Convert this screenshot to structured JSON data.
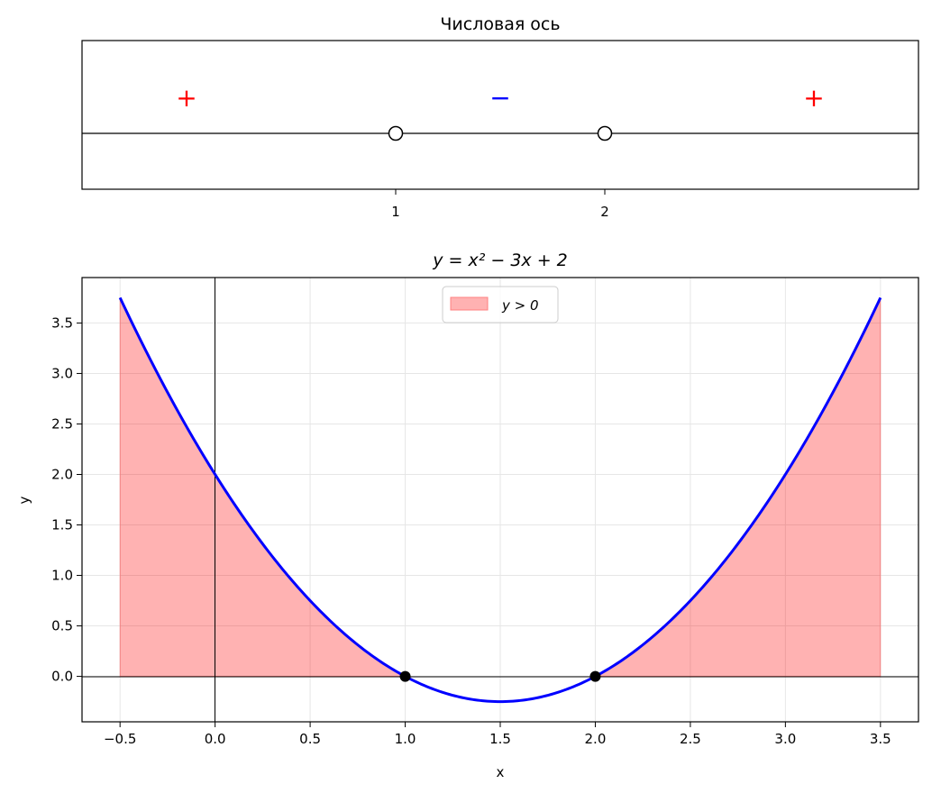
{
  "chart_data": [
    {
      "type": "line",
      "title": "Числовая ось",
      "xlim": [
        -0.5,
        3.5
      ],
      "xticks": [
        1,
        2
      ],
      "tick_labels": [
        "1",
        "2"
      ],
      "open_points": [
        1,
        2
      ],
      "signs": [
        {
          "x": 0.0,
          "label": "+",
          "color": "#ff0000"
        },
        {
          "x": 1.5,
          "label": "−",
          "color": "#0000ff"
        },
        {
          "x": 3.0,
          "label": "+",
          "color": "#ff0000"
        }
      ]
    },
    {
      "type": "line",
      "title": "y = x² − 3x + 2",
      "function": {
        "a": 1,
        "b": -3,
        "c": 2
      },
      "x_range": [
        -0.5,
        3.5
      ],
      "xlabel": "x",
      "ylabel": "y",
      "xlim": [
        -0.7,
        3.7
      ],
      "ylim": [
        -0.45,
        3.95
      ],
      "xticks": [
        -0.5,
        0.0,
        0.5,
        1.0,
        1.5,
        2.0,
        2.5,
        3.0,
        3.5
      ],
      "xtick_labels": [
        "−0.5",
        "0.0",
        "0.5",
        "1.0",
        "1.5",
        "2.0",
        "2.5",
        "3.0",
        "3.5"
      ],
      "yticks": [
        0.0,
        0.5,
        1.0,
        1.5,
        2.0,
        2.5,
        3.0,
        3.5
      ],
      "ytick_labels": [
        "0.0",
        "0.5",
        "1.0",
        "1.5",
        "2.0",
        "2.5",
        "3.0",
        "3.5"
      ],
      "grid": true,
      "line_color": "#0000ff",
      "fill_color": "#ff0000",
      "fill_regions": [
        [
          -0.5,
          1.0
        ],
        [
          2.0,
          3.5
        ]
      ],
      "roots": [
        1.0,
        2.0
      ],
      "legend": {
        "label": "y > 0",
        "placement": "upper-center"
      }
    }
  ]
}
